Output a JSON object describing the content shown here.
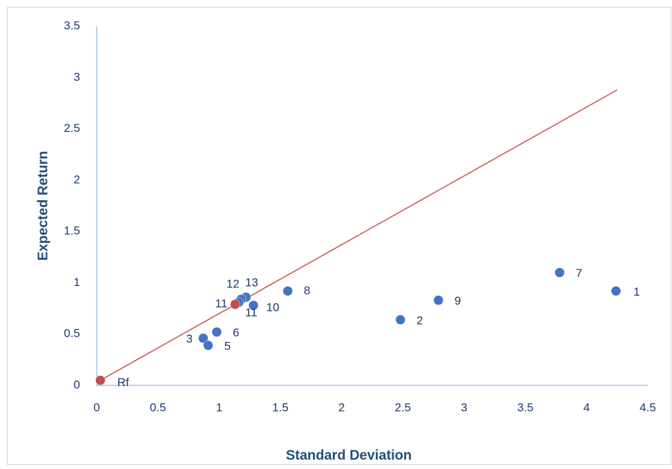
{
  "chart_data": {
    "type": "scatter",
    "xlabel": "Standard Deviation",
    "ylabel": "Expected Return",
    "xlim": [
      0,
      4.5
    ],
    "ylim": [
      0,
      3.5
    ],
    "xticks": [
      0,
      0.5,
      1,
      1.5,
      2,
      2.5,
      3,
      3.5,
      4,
      4.5
    ],
    "yticks": [
      0,
      0.5,
      1,
      1.5,
      2,
      2.5,
      3,
      3.5
    ],
    "series": [
      {
        "color": "#4472c4",
        "x": [
          4.24,
          3.78,
          2.79,
          2.48,
          1.56,
          1.28,
          1.22,
          1.18,
          1.16,
          0.98,
          0.87,
          0.91
        ],
        "y": [
          0.92,
          1.1,
          0.83,
          0.64,
          0.92,
          0.78,
          0.86,
          0.84,
          0.81,
          0.52,
          0.46,
          0.39
        ],
        "labels": [
          "1",
          "7",
          "9",
          "2",
          "8",
          "10",
          "13",
          "12",
          "11",
          "6",
          "3",
          "5"
        ]
      },
      {
        "color": "#c0504d",
        "x": [
          0.03,
          1.13
        ],
        "y": [
          0.05,
          0.79
        ],
        "labels": [
          "Rf",
          "11"
        ]
      }
    ],
    "lines": [
      {
        "color": "#c0504d",
        "x": [
          0.03,
          4.25
        ],
        "y": [
          0.05,
          2.88
        ]
      }
    ]
  }
}
